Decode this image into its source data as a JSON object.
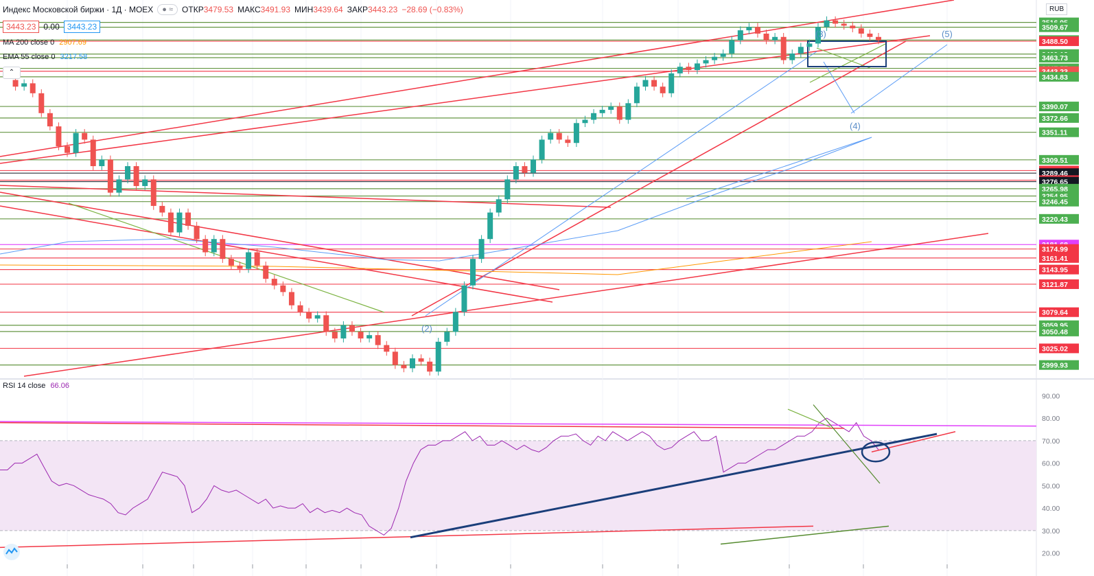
{
  "header": {
    "title": "Индекс Московской биржи · 1Д · MOEX",
    "open_label": "ОТКР",
    "open": "3479.53",
    "high_label": "МАКС",
    "high": "3491.93",
    "low_label": "МИН",
    "low": "3439.64",
    "close_label": "ЗАКР",
    "close": "3443.23",
    "change": "−28.69 (−0.83%)",
    "price_left": "3443.23",
    "spread": "0.00",
    "price_right": "3443.23"
  },
  "indicators": {
    "ma_label": "MA 200 close 0",
    "ma_value": "2907.69",
    "ema_label": "EMA 55 close 0",
    "ema_value": "3217.58",
    "rsi_label": "RSI 14 close",
    "rsi_value": "66.06"
  },
  "currency": "RUB",
  "wave_labels": [
    "(2)",
    "(3)",
    "(4)",
    "(5)"
  ],
  "colors": {
    "up": "#26a69a",
    "down": "#ef5350",
    "red_line": "#f23645",
    "green_line": "#4caf50",
    "ema": "#5b9cf6",
    "rsi": "#9c27b0",
    "rsi_band": "#f3e5f5",
    "rsi_trend": "#1a3e7a"
  },
  "chart_data": {
    "type": "candlestick",
    "y_axis_labels": [
      {
        "v": 3516.95,
        "bg": "#4caf50"
      },
      {
        "v": 3509.67,
        "bg": "#4caf50"
      },
      {
        "v": 3490.24,
        "bg": "#4caf50"
      },
      {
        "v": 3488.5,
        "bg": "#f23645"
      },
      {
        "v": 3469.13,
        "bg": "#4caf50"
      },
      {
        "v": 3463.73,
        "bg": "#4caf50"
      },
      {
        "v": 3447.57,
        "bg": "#4caf50"
      },
      {
        "v": 3443.23,
        "bg": "#ef5350"
      },
      {
        "v": 3434.83,
        "bg": "#4caf50"
      },
      {
        "v": 3390.07,
        "bg": "#4caf50"
      },
      {
        "v": 3372.66,
        "bg": "#4caf50"
      },
      {
        "v": 3351.11,
        "bg": "#4caf50"
      },
      {
        "v": 3309.51,
        "bg": "#4caf50"
      },
      {
        "v": 3293.34,
        "bg": "#f23645"
      },
      {
        "v": 3289.46,
        "bg": "#131722"
      },
      {
        "v": 3278.8,
        "bg": "#f23645"
      },
      {
        "v": 3276.65,
        "bg": "#131722"
      },
      {
        "v": 3265.98,
        "bg": "#4caf50"
      },
      {
        "v": 3254.95,
        "bg": "#4caf50"
      },
      {
        "v": 3246.45,
        "bg": "#4caf50"
      },
      {
        "v": 3220.43,
        "bg": "#4caf50"
      },
      {
        "v": 3181.68,
        "bg": "#e040fb"
      },
      {
        "v": 3174.99,
        "bg": "#f23645"
      },
      {
        "v": 3161.41,
        "bg": "#f23645"
      },
      {
        "v": 3143.95,
        "bg": "#f23645"
      },
      {
        "v": 3121.87,
        "bg": "#f23645"
      },
      {
        "v": 3079.64,
        "bg": "#f23645"
      },
      {
        "v": 3059.95,
        "bg": "#4caf50"
      },
      {
        "v": 3050.48,
        "bg": "#4caf50"
      },
      {
        "v": 3025.02,
        "bg": "#f23645"
      },
      {
        "v": 2999.93,
        "bg": "#4caf50"
      }
    ],
    "rsi_axis": [
      "90.00",
      "80.00",
      "70.00",
      "60.00",
      "50.00",
      "40.00",
      "30.00",
      "20.00"
    ],
    "rsi_band": [
      30,
      70
    ],
    "rsi_values": [
      57,
      57,
      60,
      60,
      62,
      64,
      58,
      52,
      50,
      51,
      50,
      48,
      46,
      45,
      44,
      42,
      38,
      37,
      40,
      42,
      44,
      50,
      56,
      55,
      54,
      50,
      38,
      40,
      44,
      50,
      48,
      47,
      48,
      46,
      44,
      42,
      44,
      40,
      41,
      40,
      40,
      42,
      38,
      40,
      38,
      39,
      38,
      40,
      38,
      37,
      32,
      30,
      28,
      31,
      40,
      52,
      60,
      66,
      68,
      68,
      70,
      70,
      72,
      74,
      70,
      72,
      68,
      68,
      70,
      68,
      66,
      68,
      66,
      65,
      67,
      70,
      72,
      72,
      73,
      70,
      68,
      72,
      70,
      74,
      72,
      70,
      72,
      74,
      72,
      68,
      66,
      67,
      70,
      72,
      74,
      70,
      70,
      72,
      56,
      58,
      60,
      60,
      62,
      64,
      66,
      66,
      68,
      70,
      72,
      72,
      74,
      78,
      80,
      78,
      76,
      74,
      78,
      72,
      70,
      66
    ]
  }
}
